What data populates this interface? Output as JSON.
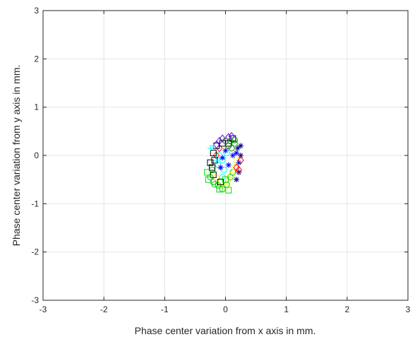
{
  "chart_data": {
    "type": "scatter",
    "title": "",
    "xlabel": "Phase center variation from x axis in mm.",
    "ylabel": "Phase center variation from y axis in mm.",
    "xlim": [
      -3,
      3
    ],
    "ylim": [
      -3,
      3
    ],
    "xticks": [
      -3,
      -2,
      -1,
      0,
      1,
      2,
      3
    ],
    "yticks": [
      -3,
      -2,
      -1,
      0,
      1,
      2,
      3
    ],
    "xtick_labels": [
      "-3",
      "-2",
      "-1",
      "0",
      "1",
      "2",
      "3"
    ],
    "ytick_labels": [
      "-3",
      "-2",
      "-1",
      "0",
      "1",
      "2",
      "3"
    ],
    "grid": true,
    "legend": "none",
    "series": [
      {
        "color": "#00c000",
        "marker": "circle",
        "points": [
          [
            -0.25,
            -0.45
          ],
          [
            -0.2,
            -0.55
          ],
          [
            -0.12,
            -0.62
          ],
          [
            -0.05,
            -0.7
          ],
          [
            0.02,
            -0.6
          ],
          [
            0.08,
            -0.45
          ],
          [
            0.12,
            -0.35
          ],
          [
            -0.22,
            -0.3
          ],
          [
            0.15,
            0.25
          ],
          [
            0.08,
            0.3
          ],
          [
            -0.18,
            -0.6
          ]
        ]
      },
      {
        "color": "#ffff00",
        "marker": "circle",
        "points": [
          [
            -0.08,
            -0.55
          ],
          [
            0.0,
            -0.65
          ],
          [
            0.05,
            -0.5
          ],
          [
            0.1,
            -0.4
          ],
          [
            -0.15,
            -0.45
          ],
          [
            0.18,
            -0.1
          ],
          [
            0.15,
            -0.25
          ]
        ]
      },
      {
        "color": "#00ffff",
        "marker": "circle",
        "points": [
          [
            -0.05,
            -0.1
          ],
          [
            -0.1,
            0.0
          ],
          [
            -0.02,
            -0.3
          ],
          [
            -0.12,
            -0.2
          ],
          [
            0.02,
            0.05
          ],
          [
            -0.05,
            -0.45
          ]
        ]
      },
      {
        "color": "#0000ff",
        "marker": "star",
        "points": [
          [
            0.0,
            0.1
          ],
          [
            -0.05,
            -0.05
          ],
          [
            -0.08,
            -0.25
          ],
          [
            0.05,
            -0.2
          ],
          [
            0.12,
            0.0
          ],
          [
            0.18,
            0.05
          ],
          [
            0.22,
            -0.15
          ]
        ]
      },
      {
        "color": "#000080",
        "marker": "star",
        "points": [
          [
            0.2,
            0.15
          ],
          [
            0.25,
            0.0
          ],
          [
            0.22,
            -0.35
          ],
          [
            0.18,
            -0.5
          ],
          [
            0.25,
            0.2
          ]
        ]
      },
      {
        "color": "#ff0000",
        "marker": "diamond",
        "points": [
          [
            0.18,
            -0.25
          ],
          [
            0.22,
            -0.3
          ],
          [
            -0.15,
            0.0
          ],
          [
            0.25,
            -0.1
          ],
          [
            -0.1,
            0.15
          ]
        ]
      },
      {
        "color": "#000000",
        "marker": "square",
        "points": [
          [
            -0.2,
            -0.4
          ],
          [
            -0.22,
            -0.25
          ],
          [
            -0.18,
            -0.1
          ],
          [
            -0.2,
            0.05
          ],
          [
            -0.15,
            0.2
          ],
          [
            -0.05,
            0.25
          ],
          [
            0.05,
            0.25
          ],
          [
            -0.08,
            -0.55
          ],
          [
            0.12,
            0.35
          ],
          [
            -0.25,
            -0.15
          ]
        ]
      },
      {
        "color": "#6a00ff",
        "marker": "diamond",
        "points": [
          [
            -0.1,
            0.3
          ],
          [
            -0.05,
            0.35
          ],
          [
            -0.15,
            0.22
          ],
          [
            0.1,
            0.4
          ],
          [
            0.05,
            0.38
          ]
        ]
      },
      {
        "color": "#00ffff",
        "marker": "plus",
        "points": [
          [
            -0.25,
            0.15
          ],
          [
            -0.2,
            0.2
          ],
          [
            -0.15,
            -0.1
          ]
        ]
      },
      {
        "color": "#008000",
        "marker": "circle",
        "points": [
          [
            0.05,
            0.2
          ],
          [
            0.1,
            0.15
          ],
          [
            0.0,
            0.3
          ],
          [
            0.15,
            0.32
          ]
        ]
      },
      {
        "color": "#00e000",
        "marker": "square",
        "points": [
          [
            -0.3,
            -0.35
          ],
          [
            -0.28,
            -0.5
          ],
          [
            -0.1,
            -0.7
          ],
          [
            0.05,
            -0.72
          ],
          [
            0.0,
            -0.5
          ]
        ]
      }
    ]
  }
}
